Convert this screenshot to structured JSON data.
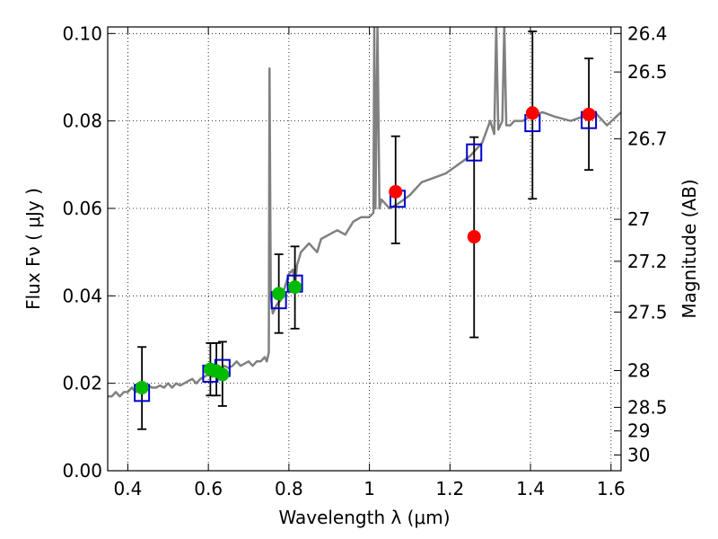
{
  "chart_data": {
    "type": "scatter",
    "title": "",
    "xlabel": "Wavelength  λ (μm)",
    "ylabel": "Flux  Fν  ( μJy )",
    "ylabel_right": "Magnitude (AB)",
    "xlim": [
      0.35,
      1.625
    ],
    "ylim": [
      0.0,
      0.1015
    ],
    "grid": true,
    "x_ticks": [
      0.4,
      0.6,
      0.8,
      1.0,
      1.2,
      1.4,
      1.6
    ],
    "x_tick_labels": [
      "0.4",
      "0.6",
      "0.8",
      "1",
      "1.2",
      "1.4",
      "1.6"
    ],
    "y_ticks": [
      0.0,
      0.02,
      0.04,
      0.06,
      0.08,
      0.1
    ],
    "y_tick_labels": [
      "0.00",
      "0.02",
      "0.04",
      "0.06",
      "0.08",
      "0.10"
    ],
    "right_ticks": [
      {
        "label": "26.4",
        "flux": 0.1
      },
      {
        "label": "26.5",
        "flux": 0.0912
      },
      {
        "label": "26.7",
        "flux": 0.0759
      },
      {
        "label": "27",
        "flux": 0.0575
      },
      {
        "label": "27.2",
        "flux": 0.0479
      },
      {
        "label": "27.5",
        "flux": 0.0363
      },
      {
        "label": "28",
        "flux": 0.0229
      },
      {
        "label": "28.5",
        "flux": 0.0145
      },
      {
        "label": "29",
        "flux": 0.0091
      },
      {
        "label": "30",
        "flux": 0.0036
      }
    ],
    "model_spectrum": {
      "color": "#808080",
      "x": [
        0.35,
        0.36,
        0.37,
        0.38,
        0.39,
        0.4,
        0.41,
        0.42,
        0.43,
        0.44,
        0.45,
        0.46,
        0.47,
        0.48,
        0.49,
        0.5,
        0.51,
        0.52,
        0.53,
        0.54,
        0.55,
        0.56,
        0.57,
        0.58,
        0.59,
        0.6,
        0.61,
        0.62,
        0.63,
        0.64,
        0.65,
        0.66,
        0.67,
        0.68,
        0.69,
        0.7,
        0.71,
        0.72,
        0.73,
        0.74,
        0.745,
        0.75,
        0.752,
        0.755,
        0.76,
        0.77,
        0.78,
        0.79,
        0.8,
        0.81,
        0.815,
        0.82,
        0.83,
        0.84,
        0.85,
        0.86,
        0.87,
        0.88,
        0.9,
        0.92,
        0.94,
        0.96,
        0.98,
        1.0,
        1.01,
        1.012,
        1.015,
        1.02,
        1.025,
        1.03,
        1.05,
        1.07,
        1.1,
        1.13,
        1.16,
        1.19,
        1.22,
        1.25,
        1.28,
        1.3,
        1.31,
        1.315,
        1.32,
        1.33,
        1.335,
        1.34,
        1.35,
        1.36,
        1.38,
        1.4,
        1.43,
        1.46,
        1.5,
        1.53,
        1.56,
        1.59,
        1.625
      ],
      "y": [
        0.017,
        0.017,
        0.018,
        0.017,
        0.018,
        0.018,
        0.019,
        0.018,
        0.019,
        0.019,
        0.0195,
        0.019,
        0.019,
        0.0195,
        0.019,
        0.02,
        0.019,
        0.02,
        0.0195,
        0.02,
        0.0205,
        0.021,
        0.02,
        0.021,
        0.0215,
        0.022,
        0.0215,
        0.0225,
        0.023,
        0.024,
        0.0235,
        0.024,
        0.025,
        0.024,
        0.0245,
        0.025,
        0.024,
        0.025,
        0.025,
        0.026,
        0.025,
        0.027,
        0.092,
        0.04,
        0.036,
        0.038,
        0.039,
        0.042,
        0.045,
        0.046,
        0.042,
        0.047,
        0.05,
        0.051,
        0.052,
        0.051,
        0.05,
        0.053,
        0.054,
        0.055,
        0.054,
        0.057,
        0.058,
        0.058,
        0.059,
        0.1015,
        0.06,
        0.1015,
        0.06,
        0.062,
        0.06,
        0.061,
        0.063,
        0.066,
        0.067,
        0.068,
        0.07,
        0.072,
        0.075,
        0.08,
        0.077,
        0.1015,
        0.078,
        0.08,
        0.1015,
        0.079,
        0.079,
        0.08,
        0.08,
        0.081,
        0.082,
        0.081,
        0.08,
        0.081,
        0.082,
        0.079,
        0.082
      ]
    },
    "model_points": {
      "color": "#0000cc",
      "x": [
        0.435,
        0.605,
        0.635,
        0.775,
        0.815,
        1.07,
        1.26,
        1.405,
        1.545
      ],
      "y": [
        0.0178,
        0.0222,
        0.0235,
        0.039,
        0.0428,
        0.0622,
        0.0728,
        0.0795,
        0.0802
      ]
    },
    "series": [
      {
        "color": "#00bb00",
        "x": [
          0.435,
          0.605,
          0.62,
          0.635,
          0.775,
          0.815
        ],
        "y": [
          0.019,
          0.0232,
          0.0228,
          0.022,
          0.0405,
          0.042
        ],
        "err_low": [
          0.0095,
          0.0172,
          0.0172,
          0.0148,
          0.0315,
          0.0325
        ],
        "err_high": [
          0.0283,
          0.0292,
          0.0292,
          0.0295,
          0.0495,
          0.0513
        ]
      },
      {
        "color": "#ff0000",
        "x": [
          1.065,
          1.26,
          1.405,
          1.545
        ],
        "y": [
          0.0638,
          0.0535,
          0.0818,
          0.0815
        ],
        "err_low": [
          0.052,
          0.0305,
          0.0622,
          0.0688
        ],
        "err_high": [
          0.0765,
          0.0763,
          0.1005,
          0.0943
        ]
      }
    ]
  }
}
